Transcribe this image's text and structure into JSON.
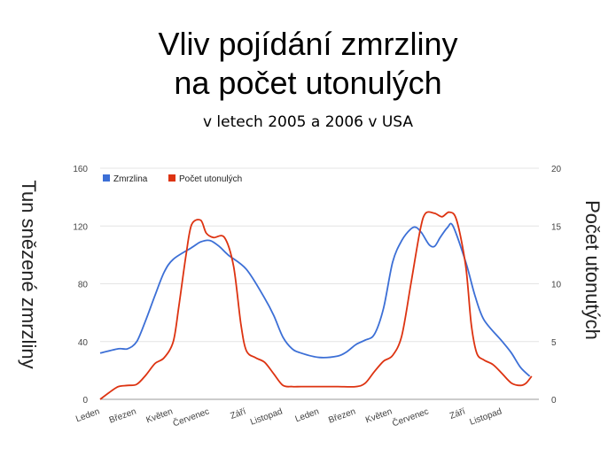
{
  "chart_data": {
    "type": "line",
    "title_line1": "Vliv pojídání zmrzliny",
    "title_line2": "na počet utonulých",
    "subtitle": "v letech 2005 a 2006 v USA",
    "ylabel_left": "Tun snězené zmrzliny",
    "ylabel_right": "Počet utonutých",
    "x_tick_labels": [
      "Leden",
      "Březen",
      "Květen",
      "Červenec",
      "Září",
      "Listopad",
      "Leden",
      "Březen",
      "Květen",
      "Červenec",
      "Září",
      "Listopad"
    ],
    "y_left": {
      "min": 0,
      "max": 160,
      "ticks": [
        "0",
        "40",
        "80",
        "120",
        "160"
      ]
    },
    "y_right": {
      "min": 0,
      "max": 20,
      "ticks": [
        "0",
        "5",
        "10",
        "15",
        "20"
      ]
    },
    "grid": true,
    "legend_position": "top-left",
    "series": [
      {
        "name": "Zmrzlina",
        "axis": "left",
        "color": "#3c6fd6",
        "points": [
          [
            0,
            32
          ],
          [
            1,
            35
          ],
          [
            1.5,
            35
          ],
          [
            2,
            40
          ],
          [
            2.5,
            55
          ],
          [
            3,
            72
          ],
          [
            3.5,
            88
          ],
          [
            4,
            97
          ],
          [
            5,
            105
          ],
          [
            5.5,
            109
          ],
          [
            6,
            110
          ],
          [
            6.5,
            106
          ],
          [
            7,
            100
          ],
          [
            8,
            90
          ],
          [
            9,
            70
          ],
          [
            9.5,
            58
          ],
          [
            10,
            43
          ],
          [
            10.5,
            35
          ],
          [
            11,
            32
          ],
          [
            12,
            29
          ],
          [
            13,
            30
          ],
          [
            13.5,
            33
          ],
          [
            14,
            38
          ],
          [
            14.5,
            41
          ],
          [
            15,
            45
          ],
          [
            15.5,
            63
          ],
          [
            16,
            95
          ],
          [
            16.5,
            110
          ],
          [
            17,
            118
          ],
          [
            17.3,
            119
          ],
          [
            17.6,
            115
          ],
          [
            18,
            107
          ],
          [
            18.3,
            106
          ],
          [
            18.6,
            112
          ],
          [
            19,
            119
          ],
          [
            19.3,
            120
          ],
          [
            20,
            95
          ],
          [
            20.5,
            72
          ],
          [
            21,
            55
          ],
          [
            22,
            40
          ],
          [
            22.5,
            32
          ],
          [
            23,
            22
          ],
          [
            23.5,
            16
          ]
        ]
      },
      {
        "name": "Počet utonulých",
        "axis": "right",
        "color": "#dd3311",
        "points": [
          [
            0,
            0
          ],
          [
            0.5,
            0.6
          ],
          [
            1,
            1.1
          ],
          [
            1.5,
            1.2
          ],
          [
            2,
            1.3
          ],
          [
            2.5,
            2.1
          ],
          [
            3,
            3.1
          ],
          [
            3.5,
            3.6
          ],
          [
            4,
            5.0
          ],
          [
            4.3,
            8.0
          ],
          [
            4.7,
            12.5
          ],
          [
            5,
            15.1
          ],
          [
            5.5,
            15.5
          ],
          [
            5.8,
            14.4
          ],
          [
            6.2,
            14
          ],
          [
            6.8,
            14.0
          ],
          [
            7.3,
            11.5
          ],
          [
            7.7,
            6.5
          ],
          [
            8,
            4.2
          ],
          [
            8.5,
            3.6
          ],
          [
            9,
            3.2
          ],
          [
            9.5,
            2.2
          ],
          [
            10,
            1.2
          ],
          [
            10.5,
            1.1
          ],
          [
            11,
            1.1
          ],
          [
            12,
            1.1
          ],
          [
            13,
            1.1
          ],
          [
            14,
            1.1
          ],
          [
            14.5,
            1.4
          ],
          [
            15,
            2.4
          ],
          [
            15.5,
            3.3
          ],
          [
            16,
            3.8
          ],
          [
            16.5,
            5.5
          ],
          [
            17,
            10
          ],
          [
            17.5,
            14.6
          ],
          [
            17.8,
            16.1
          ],
          [
            18.3,
            16.1
          ],
          [
            18.7,
            15.8
          ],
          [
            19.1,
            16.2
          ],
          [
            19.5,
            15.5
          ],
          [
            20,
            11.5
          ],
          [
            20.3,
            6.5
          ],
          [
            20.6,
            4.0
          ],
          [
            21,
            3.4
          ],
          [
            21.5,
            3.0
          ],
          [
            22,
            2.2
          ],
          [
            22.5,
            1.4
          ],
          [
            23,
            1.2
          ],
          [
            23.3,
            1.4
          ],
          [
            23.6,
            2.0
          ]
        ]
      }
    ]
  }
}
